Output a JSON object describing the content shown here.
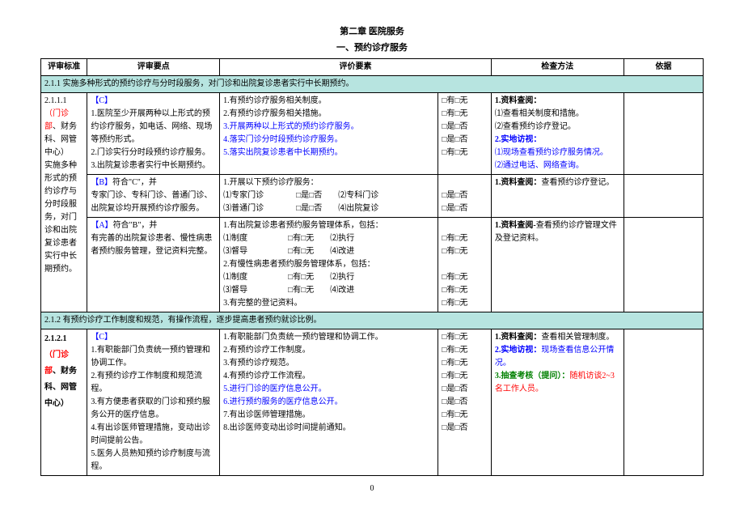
{
  "title1": "第二章  医院服务",
  "title2": "一、预约诊疗服务",
  "headers": {
    "c1": "评审标准",
    "c2": "评审要点",
    "c3": "评价要素",
    "c4": "检查方法",
    "c5": "依据"
  },
  "section1_hdr": "2.1.1 实施多种形式的预约诊疗与分时段服务，对门诊和出院复诊患者实行中长期预约。",
  "r1_std_num": "2.1.1.1",
  "r1_std_dept1": "（门诊部",
  "r1_std_dept2": "、财务科、网管中心）",
  "r1_std_body": "实施多种形式的预约诊疗与分时段服务，对门诊和出院复诊患者实行中长期预约。",
  "r1_pts_c": "【C】",
  "r1_pts_1": "1.医院至少开展两种以上形式的预约诊疗服务，如电话、网络、现场等预约形式。",
  "r1_pts_2": "2.门诊实行分时段预约诊疗服务。",
  "r1_pts_3": "3.出院复诊患者实行中长期预约。",
  "r1_eval_1": "1.有预约诊疗服务相关制度。",
  "r1_eval_2": "2.有预约诊疗服务相关措施。",
  "r1_eval_3": "3.开展两种以上形式的预约诊疗服务。",
  "r1_eval_4": "4.落实门诊分时段预约诊疗服务。",
  "r1_eval_5": "5.落实出院复诊患者中长期预约。",
  "r1_chk_yw": "□有□无",
  "r1_chk_sf": "□是□否",
  "r1_m_1": "1.资料查阅：",
  "r1_m_1a": "⑴查看相关制度和措施。",
  "r1_m_1b": "⑵查看预约诊疗登记。",
  "r1_m_2": "2.实地访视：",
  "r1_m_2a": "⑴现场查看预约诊疗服务情况。",
  "r1_m_2b": "⑵通过电话、网络查询。",
  "r2_pts_b": "【B】",
  "r2_pts_bt": "符合\"C\"，并",
  "r2_pts_body": "专家门诊、专科门诊、普通门诊、出院复诊均开展预约诊疗服务。",
  "r2_eval_1": "1.开展以下预约诊疗服务：",
  "r2_eval_l2a": "⑴专家门诊　　　　□是□否　　⑵专科门诊",
  "r2_eval_l2b": "□是□否",
  "r2_eval_l3a": "⑶普通门诊　　　　□是□否　　⑷出院复诊",
  "r2_eval_l3b": "□是□否",
  "r2_m": "1.资料查阅：",
  "r2_m_t": "查看预约诊疗登记。",
  "r3_pts_a": "【A】",
  "r3_pts_at": "符合\"B\"，并",
  "r3_pts_body": "有完善的出院复诊患者、慢性病患者预约服务管理，登记资料完整。",
  "r3_eval_1": "1.有出院复诊患者预约服务管理体系，包括：",
  "r3_eval_l2": "⑴制度　　　　　□有□无　　⑵执行",
  "r3_eval_l3": "⑶督导　　　　　□有□无　　⑷改进",
  "r3_eval_2": "2.有慢性病患者预约服务管理体系，包括：",
  "r3_eval_l5": "⑴制度　　　　　□有□无　　⑵执行",
  "r3_eval_l6": "⑶督导　　　　　□有□无　　⑷改进",
  "r3_eval_3": "3.有完整的登记资料。",
  "r3_m": "1.资料查阅-",
  "r3_m_t": "查看预约诊疗管理文件及登记资料。",
  "section2_hdr": "2.1.2 有预约诊疗工作制度和规范，有操作流程，逐步提高患者预约就诊比例。",
  "r4_std_num": "2.1.2.1",
  "r4_std_dept1": "（门诊部",
  "r4_std_dept2": "、财务科、网管中心）",
  "r4_pts_c": "【C】",
  "r4_pts_1": "1.有职能部门负责统一预约管理和协调工作。",
  "r4_pts_2": "2.有预约诊疗工作制度和规范流程。",
  "r4_pts_3": "3.有方便患者获取的门诊和预约服务公开的医疗信息。",
  "r4_pts_4": "4.有出诊医师管理措施，变动出诊时间提前公告。",
  "r4_pts_5": "5.医务人员熟知预约诊疗制度与流程。",
  "r4_eval_1": "1.有职能部门负责统一预约管理和协调工作。",
  "r4_eval_2": "2.有预约诊疗工作制度。",
  "r4_eval_3": "3.有预约诊疗规范。",
  "r4_eval_4": "4.有预约诊疗工作流程。",
  "r4_eval_5": "5.进行门诊的医疗信息公开。",
  "r4_eval_6": "6.进行预约服务的医疗信息公开。",
  "r4_eval_7": "7.有出诊医师管理措施。",
  "r4_eval_8": "8.出诊医师变动出诊时间提前通知。",
  "r4_m_1": "1.资料查阅：",
  "r4_m_1t": "查看相关管理制度。",
  "r4_m_2": "2.实地访视：",
  "r4_m_2t": "现场查看信息公开情况。",
  "r4_m_3": "3.抽查考核（提问）：",
  "r4_m_3t": "随机访谈2~3名工作人员。",
  "pagenum": "0"
}
